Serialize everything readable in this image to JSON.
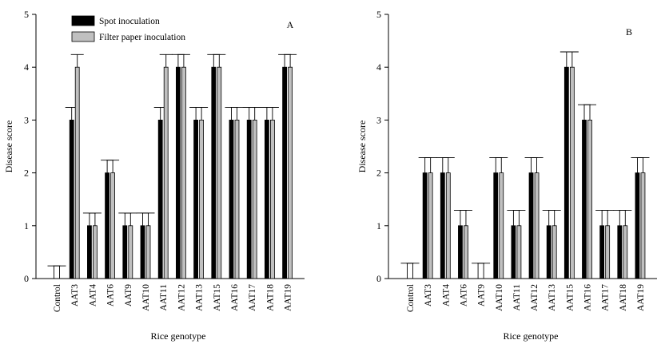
{
  "chart_data": [
    {
      "type": "bar",
      "panel_label": "A",
      "xlabel": "Rice genotype",
      "ylabel": "Disease score",
      "ylim": [
        0,
        5
      ],
      "yticks": [
        "0",
        "1",
        "2",
        "3",
        "4",
        "5"
      ],
      "categories": [
        "Control",
        "AAT3",
        "AAT4",
        "AAT6",
        "AAT9",
        "AAT10",
        "AAT11",
        "AAT12",
        "AAT13",
        "AAT15",
        "AAT16",
        "AAT17",
        "AAT18",
        "AAT19"
      ],
      "legend": {
        "position": "top-left"
      },
      "series": [
        {
          "name": "Spot inoculation",
          "color": "#000000",
          "values": [
            0,
            3,
            1,
            2,
            1,
            1,
            3,
            4,
            3,
            4,
            3,
            3,
            3,
            4
          ],
          "error": [
            0.24,
            0.24,
            0.24,
            0.24,
            0.24,
            0.24,
            0.24,
            0.24,
            0.24,
            0.24,
            0.24,
            0.24,
            0.24,
            0.24
          ]
        },
        {
          "name": "Filter paper inoculation",
          "color": "#c0c0c0",
          "values": [
            0,
            4,
            1,
            2,
            1,
            1,
            4,
            4,
            3,
            4,
            3,
            3,
            3,
            4
          ],
          "error": [
            0.24,
            0.24,
            0.24,
            0.24,
            0.24,
            0.24,
            0.24,
            0.24,
            0.24,
            0.24,
            0.24,
            0.24,
            0.24,
            0.24
          ]
        }
      ]
    },
    {
      "type": "bar",
      "panel_label": "B",
      "xlabel": "Rice genotype",
      "ylabel": "Disease score",
      "ylim": [
        0,
        5
      ],
      "yticks": [
        "0",
        "1",
        "2",
        "3",
        "4",
        "5"
      ],
      "categories": [
        "Control",
        "AAT3",
        "AAT4",
        "AAT6",
        "AAT9",
        "AAT10",
        "AAT11",
        "AAT12",
        "AAT13",
        "AAT15",
        "AAT16",
        "AAT17",
        "AAT18",
        "AAT19"
      ],
      "series": [
        {
          "name": "Spot inoculation",
          "color": "#000000",
          "values": [
            0,
            2,
            2,
            1,
            0,
            2,
            1,
            2,
            1,
            4,
            3,
            1,
            1,
            2
          ],
          "error": [
            0.29,
            0.29,
            0.29,
            0.29,
            0.29,
            0.29,
            0.29,
            0.29,
            0.29,
            0.29,
            0.29,
            0.29,
            0.29,
            0.29
          ]
        },
        {
          "name": "Filter paper inoculation",
          "color": "#c0c0c0",
          "values": [
            0,
            2,
            2,
            1,
            0,
            2,
            1,
            2,
            1,
            4,
            3,
            1,
            1,
            2
          ],
          "error": [
            0.29,
            0.29,
            0.29,
            0.29,
            0.29,
            0.29,
            0.29,
            0.29,
            0.29,
            0.29,
            0.29,
            0.29,
            0.29,
            0.29
          ]
        }
      ]
    }
  ]
}
